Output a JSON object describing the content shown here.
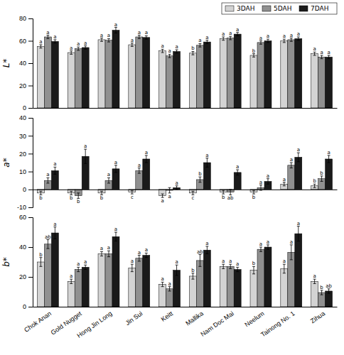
{
  "chart_data": [
    {
      "type": "bar",
      "ylabel": "L*",
      "categories": [
        null,
        null,
        null,
        null,
        null,
        null,
        null,
        null,
        null,
        null
      ],
      "series": [
        {
          "name": "3DAH",
          "color": "#d3d3d3",
          "values": [
            55.0,
            49.5,
            61.0,
            56.5,
            51.0,
            49.0,
            62.0,
            47.0,
            60.0,
            48.5
          ],
          "errors": [
            1.5,
            1.5,
            1.5,
            1.5,
            1.5,
            1.5,
            1.5,
            1.5,
            1.5,
            1.5
          ],
          "annotations": [
            "a",
            "a",
            "a",
            "a",
            "a",
            "b",
            "a",
            "b",
            "a",
            "a"
          ]
        },
        {
          "name": "5DAH",
          "color": "#909090",
          "values": [
            63.5,
            53.0,
            60.5,
            63.5,
            46.5,
            56.0,
            62.5,
            58.5,
            61.0,
            45.5
          ],
          "errors": [
            1.5,
            1.5,
            1.5,
            1.5,
            1.5,
            1.5,
            1.5,
            1.5,
            1.5,
            1.5
          ],
          "annotations": [
            "a",
            "a",
            "a",
            "a",
            "a",
            "a",
            "a",
            "a",
            "a",
            "a"
          ]
        },
        {
          "name": "7DAH",
          "color": "#1a1a1a",
          "values": [
            59.5,
            54.0,
            69.5,
            63.0,
            50.5,
            59.0,
            66.0,
            60.0,
            62.0,
            45.5
          ],
          "errors": [
            1.5,
            1.5,
            2.5,
            1.5,
            1.5,
            1.5,
            1.5,
            1.5,
            1.5,
            1.5
          ],
          "annotations": [
            "a",
            "a",
            "a",
            "a",
            "a",
            "a",
            "a",
            "a",
            "a",
            "a"
          ]
        }
      ],
      "ylim": [
        0,
        80
      ],
      "yticks": [
        0,
        20,
        40,
        60,
        80
      ],
      "legend": "upper right"
    },
    {
      "type": "bar",
      "ylabel": "a*",
      "categories": [
        null,
        null,
        null,
        null,
        null,
        null,
        null,
        null,
        null,
        null
      ],
      "series": [
        {
          "name": "3DAH",
          "color": "#d3d3d3",
          "values": [
            -2.0,
            -2.0,
            -2.0,
            -1.5,
            -3.5,
            -2.0,
            -1.5,
            -1.5,
            3.0,
            2.0
          ],
          "errors": [
            1.0,
            1.0,
            1.0,
            1.0,
            1.0,
            1.0,
            1.0,
            1.0,
            1.0,
            1.0
          ],
          "annotations": [
            "b",
            "b",
            "b",
            "c",
            "a",
            "c",
            "b",
            "b",
            "a",
            "b"
          ]
        },
        {
          "name": "5DAH",
          "color": "#909090",
          "values": [
            5.0,
            -3.5,
            5.0,
            10.5,
            -0.5,
            5.5,
            -1.5,
            1.0,
            13.5,
            6.0
          ],
          "errors": [
            1.5,
            1.5,
            1.5,
            1.5,
            1.5,
            1.5,
            1.5,
            1.5,
            1.5,
            1.5
          ],
          "annotations": [
            "a",
            "b",
            "a",
            "a",
            "a",
            "b",
            "ab",
            "a",
            "a",
            "b"
          ]
        },
        {
          "name": "7DAH",
          "color": "#1a1a1a",
          "values": [
            10.5,
            18.5,
            11.5,
            17.0,
            1.0,
            15.0,
            9.5,
            4.5,
            18.0,
            17.0
          ],
          "errors": [
            2.0,
            4.0,
            2.0,
            2.0,
            1.0,
            2.5,
            1.5,
            1.5,
            2.5,
            2.0
          ],
          "annotations": [
            "a",
            "a",
            "a",
            "a",
            "a",
            "a",
            "a",
            "a",
            "a",
            "a"
          ]
        }
      ],
      "ylim": [
        -10,
        40
      ],
      "yticks": [
        -10,
        0,
        10,
        20,
        30,
        40
      ]
    },
    {
      "type": "bar",
      "ylabel": "b*",
      "categories": [
        "Chok Anan",
        "Gold Nugget",
        "Hong Jin Long",
        "Jin Sui",
        "Keitt",
        "Mallika",
        "Nam Doc Mai",
        "Neelum",
        "Tainong No. 1",
        "Zihua"
      ],
      "series": [
        {
          "name": "3DAH",
          "color": "#d3d3d3",
          "values": [
            30.0,
            17.0,
            35.5,
            26.0,
            15.0,
            20.5,
            27.0,
            24.5,
            25.5,
            17.0
          ],
          "errors": [
            3.0,
            1.5,
            1.5,
            2.5,
            1.5,
            2.0,
            1.5,
            2.5,
            3.0,
            1.5
          ],
          "annotations": [
            "b",
            "a",
            "a",
            "a",
            "a",
            "b",
            "a",
            "b",
            "a",
            "a"
          ]
        },
        {
          "name": "5DAH",
          "color": "#909090",
          "values": [
            42.0,
            25.0,
            35.5,
            32.5,
            12.0,
            31.0,
            27.0,
            38.5,
            36.5,
            9.5
          ],
          "errors": [
            3.0,
            1.5,
            2.0,
            2.0,
            1.5,
            4.0,
            1.5,
            1.5,
            5.0,
            1.5
          ],
          "annotations": [
            "ab",
            "a",
            "a",
            "a",
            "a",
            "ab",
            "a",
            "a",
            "a",
            "b"
          ]
        },
        {
          "name": "7DAH",
          "color": "#1a1a1a",
          "values": [
            49.5,
            26.5,
            47.0,
            34.5,
            24.5,
            38.0,
            25.0,
            40.0,
            49.0,
            10.5
          ],
          "errors": [
            4.0,
            1.5,
            3.0,
            1.5,
            3.5,
            2.5,
            1.5,
            1.5,
            5.0,
            1.5
          ],
          "annotations": [
            "a",
            "a",
            "a",
            "a",
            "a",
            "a",
            "a",
            "a",
            "a",
            "ab"
          ]
        }
      ],
      "ylim": [
        0,
        60
      ],
      "yticks": [
        0,
        20,
        40,
        60
      ]
    }
  ]
}
